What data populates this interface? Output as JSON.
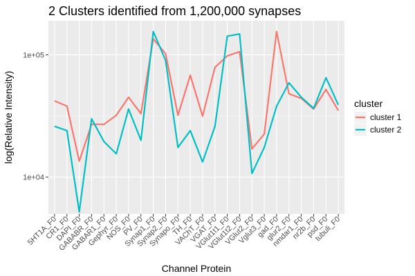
{
  "chart_data": {
    "type": "line",
    "title": "2 Clusters identified from 1,200,000 synapses",
    "xlabel": "Channel Protein",
    "ylabel": "log(Relative Intensity)",
    "y_scale": "log10",
    "ylim": [
      5000,
      190000
    ],
    "yticks": [
      {
        "value": 10000,
        "label": "1e+04"
      },
      {
        "value": 100000,
        "label": "1e+05"
      }
    ],
    "grid": true,
    "legend_title": "cluster",
    "legend_position": "right",
    "categories": [
      "5HT1A_F0",
      "CR1_F0",
      "DAPI_F0",
      "GABABR_F0",
      "GABAR1_F0",
      "Gephyr_F0",
      "NOS_F0",
      "PV_F0",
      "Synap1_F0",
      "Synap2_F0",
      "Synapo_F0",
      "TH_F0",
      "VAChT_F0",
      "VGAT_F0",
      "VGlut1t1_F0",
      "VGlut1t2_F0",
      "VGlut2_F0",
      "Vglut3_F0",
      "gad_F0",
      "glur2_F0",
      "nmdar1_F0",
      "nr2b_F0",
      "psd_F0",
      "tubuli_F0"
    ],
    "series": [
      {
        "name": "cluster 1",
        "color": "#F8766D",
        "values": [
          42000,
          38000,
          13500,
          27000,
          27000,
          32000,
          45000,
          33000,
          135000,
          102000,
          32000,
          68000,
          31500,
          79000,
          98000,
          106000,
          17000,
          22500,
          155000,
          48000,
          44000,
          36000,
          52000,
          35000
        ]
      },
      {
        "name": "cluster 2",
        "color": "#00BFC4",
        "values": [
          26000,
          24000,
          5200,
          30000,
          19500,
          15500,
          36000,
          20000,
          155000,
          90000,
          17500,
          24000,
          13300,
          26000,
          142000,
          148000,
          10700,
          17500,
          38000,
          59000,
          45000,
          36500,
          65000,
          39000
        ]
      }
    ]
  }
}
